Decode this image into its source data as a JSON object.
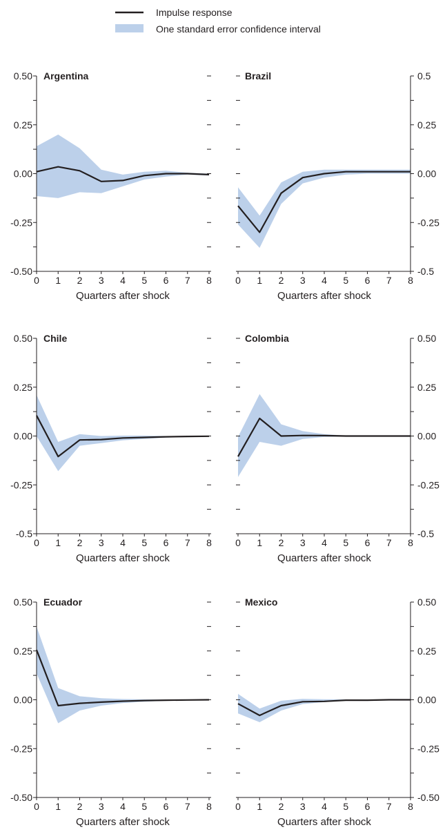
{
  "legend": {
    "line_label": "Impulse response",
    "band_label": "One standard error confidence interval",
    "line_color": "#231f20",
    "band_color": "#bcd0ea"
  },
  "chart_data": [
    {
      "type": "line",
      "title": "Argentina",
      "xlabel": "Quarters after shock",
      "ylabel": "",
      "x": [
        0,
        1,
        2,
        3,
        4,
        5,
        6,
        7,
        8
      ],
      "xlim": [
        0,
        8
      ],
      "ylim": [
        -0.5,
        0.5
      ],
      "y_side": "left",
      "y_tick_labels": [
        "0.50",
        "0.25",
        "0.00",
        "-0.25",
        "-0.50"
      ],
      "series": [
        {
          "name": "Impulse response",
          "values": [
            0.01,
            0.035,
            0.015,
            -0.04,
            -0.035,
            -0.01,
            0.0,
            0.0,
            -0.005
          ]
        },
        {
          "name": "One standard error confidence interval",
          "upper": [
            0.14,
            0.2,
            0.13,
            0.02,
            -0.005,
            0.01,
            0.015,
            0.005,
            0.0
          ],
          "lower": [
            -0.115,
            -0.125,
            -0.095,
            -0.1,
            -0.065,
            -0.03,
            -0.015,
            -0.005,
            -0.01
          ]
        }
      ]
    },
    {
      "type": "line",
      "title": "Brazil",
      "xlabel": "Quarters after shock",
      "ylabel": "",
      "x": [
        0,
        1,
        2,
        3,
        4,
        5,
        6,
        7,
        8
      ],
      "xlim": [
        0,
        8
      ],
      "ylim": [
        -0.5,
        0.5
      ],
      "y_side": "right",
      "y_tick_labels": [
        "0.5",
        "0.25",
        "0.00",
        "-0.25",
        "-0.5"
      ],
      "series": [
        {
          "name": "Impulse response",
          "values": [
            -0.165,
            -0.3,
            -0.1,
            -0.02,
            0.0,
            0.01,
            0.01,
            0.01,
            0.01
          ]
        },
        {
          "name": "One standard error confidence interval",
          "upper": [
            -0.07,
            -0.215,
            -0.045,
            0.01,
            0.02,
            0.02,
            0.02,
            0.02,
            0.02
          ],
          "lower": [
            -0.26,
            -0.38,
            -0.155,
            -0.05,
            -0.02,
            -0.005,
            0.0,
            0.0,
            0.0
          ]
        }
      ]
    },
    {
      "type": "line",
      "title": "Chile",
      "xlabel": "Quarters after shock",
      "ylabel": "",
      "x": [
        0,
        1,
        2,
        3,
        4,
        5,
        6,
        7,
        8
      ],
      "xlim": [
        0,
        8
      ],
      "ylim": [
        -0.5,
        0.5
      ],
      "y_side": "left",
      "y_tick_labels": [
        "0.50",
        "0.25",
        "0.00",
        "-0.25",
        "-0.5"
      ],
      "series": [
        {
          "name": "Impulse response",
          "values": [
            0.105,
            -0.105,
            -0.02,
            -0.018,
            -0.01,
            -0.007,
            -0.004,
            -0.002,
            -0.001
          ]
        },
        {
          "name": "One standard error confidence interval",
          "upper": [
            0.21,
            -0.03,
            0.01,
            0.0,
            0.002,
            0.002,
            0.0,
            0.0,
            0.0
          ],
          "lower": [
            0.0,
            -0.18,
            -0.05,
            -0.036,
            -0.022,
            -0.015,
            -0.008,
            -0.005,
            -0.003
          ]
        }
      ]
    },
    {
      "type": "line",
      "title": "Colombia",
      "xlabel": "Quarters after shock",
      "ylabel": "",
      "x": [
        0,
        1,
        2,
        3,
        4,
        5,
        6,
        7,
        8
      ],
      "xlim": [
        0,
        8
      ],
      "ylim": [
        -0.5,
        0.5
      ],
      "y_side": "right",
      "y_tick_labels": [
        "0.50",
        "0.25",
        "0.00",
        "-0.25",
        "-0.5"
      ],
      "series": [
        {
          "name": "Impulse response",
          "values": [
            -0.105,
            0.09,
            0.0,
            0.003,
            0.002,
            0.0,
            0.0,
            0.0,
            0.0
          ]
        },
        {
          "name": "One standard error confidence interval",
          "upper": [
            -0.005,
            0.215,
            0.06,
            0.025,
            0.01,
            0.002,
            0.0,
            0.0,
            0.0
          ],
          "lower": [
            -0.21,
            -0.03,
            -0.05,
            -0.015,
            -0.005,
            -0.002,
            0.0,
            0.0,
            0.0
          ]
        }
      ]
    },
    {
      "type": "line",
      "title": "Ecuador",
      "xlabel": "Quarters after shock",
      "ylabel": "",
      "x": [
        0,
        1,
        2,
        3,
        4,
        5,
        6,
        7,
        8
      ],
      "xlim": [
        0,
        8
      ],
      "ylim": [
        -0.5,
        0.5
      ],
      "y_side": "left",
      "y_tick_labels": [
        "0.50",
        "0.25",
        "0.00",
        "-0.25",
        "-0.50"
      ],
      "series": [
        {
          "name": "Impulse response",
          "values": [
            0.255,
            -0.03,
            -0.018,
            -0.012,
            -0.007,
            -0.004,
            -0.002,
            -0.001,
            0.0
          ]
        },
        {
          "name": "One standard error confidence interval",
          "upper": [
            0.375,
            0.06,
            0.018,
            0.008,
            0.004,
            0.002,
            0.001,
            0.0,
            0.0
          ],
          "lower": [
            0.135,
            -0.12,
            -0.055,
            -0.03,
            -0.017,
            -0.01,
            -0.005,
            -0.002,
            -0.001
          ]
        }
      ]
    },
    {
      "type": "line",
      "title": "Mexico",
      "xlabel": "Quarters after shock",
      "ylabel": "",
      "x": [
        0,
        1,
        2,
        3,
        4,
        5,
        6,
        7,
        8
      ],
      "xlim": [
        0,
        8
      ],
      "ylim": [
        -0.5,
        0.5
      ],
      "y_side": "right",
      "y_tick_labels": [
        "0.50",
        "0.25",
        "0.00",
        "-0.25",
        "-0.50"
      ],
      "series": [
        {
          "name": "Impulse response",
          "values": [
            -0.02,
            -0.08,
            -0.03,
            -0.01,
            -0.008,
            -0.002,
            -0.002,
            0.0,
            0.0
          ]
        },
        {
          "name": "One standard error confidence interval",
          "upper": [
            0.03,
            -0.045,
            -0.005,
            0.005,
            0.003,
            0.002,
            0.001,
            0.0,
            0.0
          ],
          "lower": [
            -0.07,
            -0.115,
            -0.055,
            -0.022,
            -0.012,
            -0.005,
            -0.003,
            -0.001,
            -0.001
          ]
        }
      ]
    }
  ]
}
